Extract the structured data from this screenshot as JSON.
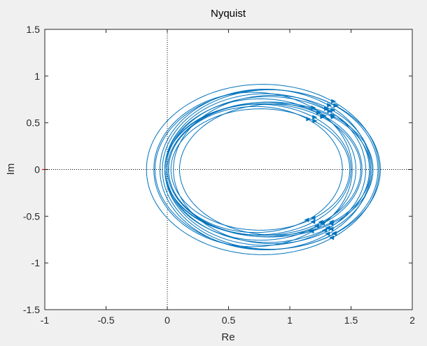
{
  "chart_data": {
    "type": "line",
    "title": "Nyquist",
    "xlabel": "Re",
    "ylabel": "Im",
    "xlim": [
      -1,
      2
    ],
    "ylim": [
      -1.5,
      1.5
    ],
    "xticks": [
      -1,
      -0.5,
      0,
      0.5,
      1,
      1.5,
      2
    ],
    "yticks": [
      -1.5,
      -1,
      -0.5,
      0,
      0.5,
      1,
      1.5
    ],
    "xtick_labels": [
      "-1",
      "-0.5",
      "0",
      "0.5",
      "1",
      "1.5",
      "2"
    ],
    "ytick_labels": [
      "-1.5",
      "-1",
      "-0.5",
      "0",
      "0.5",
      "1",
      "1.5"
    ],
    "grid": false,
    "critical_point": [
      -1,
      0
    ],
    "series_color": "#0072BD",
    "background": "#f0f0f0",
    "axes_background": "#ffffff",
    "series": [
      {
        "c": 0.72,
        "r": 0.71,
        "k": 0.95
      },
      {
        "c": 0.74,
        "r": 0.76,
        "k": 0.92
      },
      {
        "c": 0.76,
        "r": 0.78,
        "k": 0.97
      },
      {
        "c": 0.78,
        "r": 0.8,
        "k": 0.88
      },
      {
        "c": 0.8,
        "r": 0.82,
        "k": 0.99
      },
      {
        "c": 0.8,
        "r": 0.79,
        "k": 0.91
      },
      {
        "c": 0.82,
        "r": 0.83,
        "k": 0.94
      },
      {
        "c": 0.84,
        "r": 0.84,
        "k": 0.86
      },
      {
        "c": 0.86,
        "r": 0.81,
        "k": 0.98
      },
      {
        "c": 0.88,
        "r": 0.78,
        "k": 0.9
      },
      {
        "c": 0.84,
        "r": 0.88,
        "k": 0.97
      },
      {
        "c": 0.8,
        "r": 0.86,
        "k": 1.0
      },
      {
        "c": 0.82,
        "r": 0.92,
        "k": 0.93
      },
      {
        "c": 0.78,
        "r": 0.95,
        "k": 0.96
      },
      {
        "c": 0.7,
        "r": 0.81,
        "k": 1.02
      },
      {
        "c": 0.76,
        "r": 0.73,
        "k": 0.89
      }
    ]
  }
}
